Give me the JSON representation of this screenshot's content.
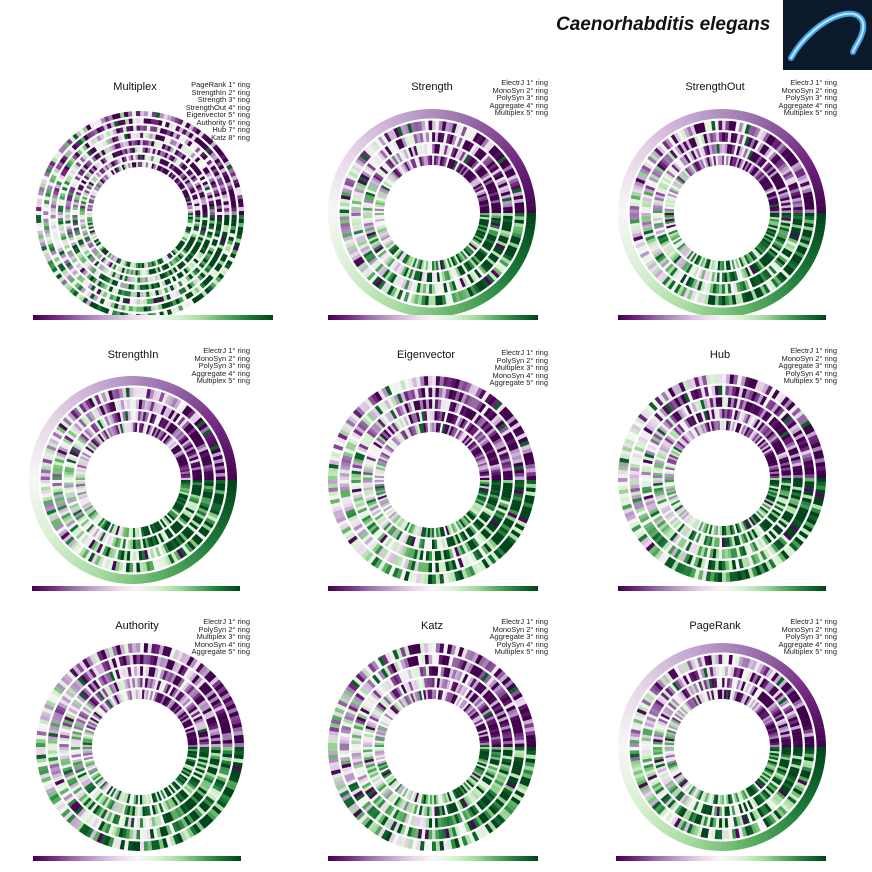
{
  "title": "Caenorhabditis elegans",
  "colors": {
    "diverging": [
      "#40004b",
      "#762a83",
      "#9970ab",
      "#c2a5cf",
      "#e7d4e8",
      "#f7f7f7",
      "#d9f0d3",
      "#a6dba0",
      "#5aae61",
      "#1b7837",
      "#00441b"
    ],
    "photo_background": "#0b1a2a",
    "photo_worm": "#4fb8ff"
  },
  "chart_data": [
    {
      "type": "radial-heatmap",
      "title": "Multiplex",
      "rings": [
        "PageRank 1° ring",
        "StrengthIn 2° ring",
        "Strength 3° ring",
        "StrengthOut 4° ring",
        "Eigenvector 5° ring",
        "Authority 6° ring",
        "Hub 7° ring",
        "Katz 8° ring"
      ]
    },
    {
      "type": "radial-heatmap",
      "title": "Strength",
      "rings": [
        "ElectrJ 1° ring",
        "MonoSyn 2° ring",
        "PolySyn 3° ring",
        "Aggregate 4° ring",
        "Multiplex 5° ring"
      ]
    },
    {
      "type": "radial-heatmap",
      "title": "StrengthOut",
      "rings": [
        "ElectrJ 1° ring",
        "MonoSyn 2° ring",
        "PolySyn 3° ring",
        "Aggregate 4° ring",
        "Multiplex 5° ring"
      ]
    },
    {
      "type": "radial-heatmap",
      "title": "StrengthIn",
      "rings": [
        "ElectrJ 1° ring",
        "MonoSyn 2° ring",
        "PolySyn 3° ring",
        "Aggregate 4° ring",
        "Multiplex 5° ring"
      ]
    },
    {
      "type": "radial-heatmap",
      "title": "Eigenvector",
      "rings": [
        "ElectrJ 1° ring",
        "PolySyn 2° ring",
        "Multiplex 3° ring",
        "MonoSyn 4° ring",
        "Aggregate 5° ring"
      ]
    },
    {
      "type": "radial-heatmap",
      "title": "Hub",
      "rings": [
        "ElectrJ 1° ring",
        "MonoSyn 2° ring",
        "Aggregate 3° ring",
        "PolySyn 4° ring",
        "Multiplex 5° ring"
      ]
    },
    {
      "type": "radial-heatmap",
      "title": "Authority",
      "rings": [
        "ElectrJ 1° ring",
        "PolySyn 2° ring",
        "Multiplex 3° ring",
        "MonoSyn 4° ring",
        "Aggregate 5° ring"
      ]
    },
    {
      "type": "radial-heatmap",
      "title": "Katz",
      "rings": [
        "ElectrJ 1° ring",
        "MonoSyn 2° ring",
        "Aggregate 3° ring",
        "PolySyn 4° ring",
        "Multiplex 5° ring"
      ]
    },
    {
      "type": "radial-heatmap",
      "title": "PageRank",
      "rings": [
        "ElectrJ 1° ring",
        "MonoSyn 2° ring",
        "PolySyn 3° ring",
        "Aggregate 4° ring",
        "Multiplex 5° ring"
      ]
    }
  ]
}
